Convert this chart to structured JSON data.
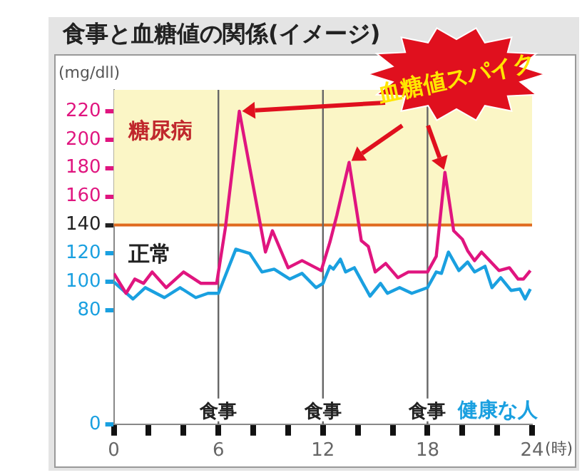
{
  "chart_data": {
    "type": "line",
    "title": "食事と血糖値の関係(イメージ)",
    "xlabel": "(時)",
    "ylabel": "(mg/dll)",
    "xlim": [
      0,
      24
    ],
    "xticks": [
      0,
      {
        "value": 2,
        "label": null
      },
      {
        "value": 4,
        "label": null
      },
      6,
      {
        "value": 8,
        "label": null
      },
      {
        "value": 10,
        "label": null
      },
      12,
      {
        "value": 14,
        "label": null
      },
      {
        "value": 16,
        "label": null
      },
      18,
      {
        "value": 20,
        "label": null
      },
      {
        "value": 22,
        "label": null
      },
      24
    ],
    "ylim": [
      0,
      235
    ],
    "yticks": [
      0,
      80,
      100,
      120,
      140,
      160,
      180,
      200,
      220
    ],
    "grid": false,
    "legend": false,
    "marker": "none",
    "line_style": "solid",
    "series": [
      {
        "color": "#e0157f",
        "x": [
          0,
          0.7,
          1.2,
          1.7,
          2.2,
          3,
          4,
          5,
          5.9,
          6.4,
          7.2,
          8.7,
          9.1,
          10,
          10.8,
          11.9,
          12.4,
          12.8,
          13.5,
          14.2,
          14.6,
          15,
          15.6,
          16.3,
          16.9,
          18,
          18.5,
          19,
          19.5,
          20,
          20.3,
          20.7,
          21.1,
          22.1,
          22.7,
          23.2,
          23.5,
          23.9
        ],
        "values": [
          106,
          92,
          102,
          99,
          107,
          96,
          107,
          99,
          99,
          138,
          220,
          121,
          136,
          110,
          115,
          108,
          128,
          147,
          184,
          129,
          125,
          107,
          113,
          103,
          107,
          107,
          118,
          177,
          136,
          130,
          122,
          115,
          121,
          108,
          110,
          102,
          102,
          108
        ]
      },
      {
        "name": "健康な人",
        "color": "#1aa0e0",
        "x": [
          0,
          1.1,
          1.8,
          2.9,
          3.8,
          4.7,
          5.4,
          6,
          7,
          7.8,
          8.5,
          9.2,
          10.1,
          10.8,
          11.6,
          12,
          12.4,
          12.6,
          13,
          13.3,
          13.8,
          14.7,
          15.3,
          15.7,
          16.4,
          17.1,
          18,
          18.5,
          18.8,
          19.2,
          19.8,
          20.3,
          20.7,
          21.3,
          21.7,
          22.2,
          22.8,
          23.3,
          23.6,
          23.9
        ],
        "values": [
          100,
          88,
          96,
          89,
          96,
          89,
          92,
          92,
          123,
          120,
          107,
          109,
          102,
          106,
          96,
          99,
          111,
          109,
          116,
          107,
          110,
          90,
          99,
          92,
          96,
          92,
          96,
          107,
          106,
          121,
          108,
          114,
          107,
          111,
          96,
          103,
          94,
          95,
          88,
          95
        ]
      }
    ],
    "bands": [
      {
        "axis": "y",
        "from": 140,
        "to": 235,
        "label": "糖尿病",
        "color": "#fbf6c6"
      }
    ],
    "ref_lines": [
      {
        "axis": "y",
        "value": 140,
        "color": "#e06a1e"
      },
      {
        "axis": "x",
        "value": 6,
        "label": "食事",
        "color": "#666666"
      },
      {
        "axis": "x",
        "value": 12,
        "label": "食事",
        "color": "#666666"
      },
      {
        "axis": "x",
        "value": 18,
        "label": "食事",
        "color": "#666666"
      }
    ],
    "annotations": [
      {
        "text": "血糖値スパイク",
        "x": 13.5,
        "y": 184
      },
      "正常"
    ]
  }
}
